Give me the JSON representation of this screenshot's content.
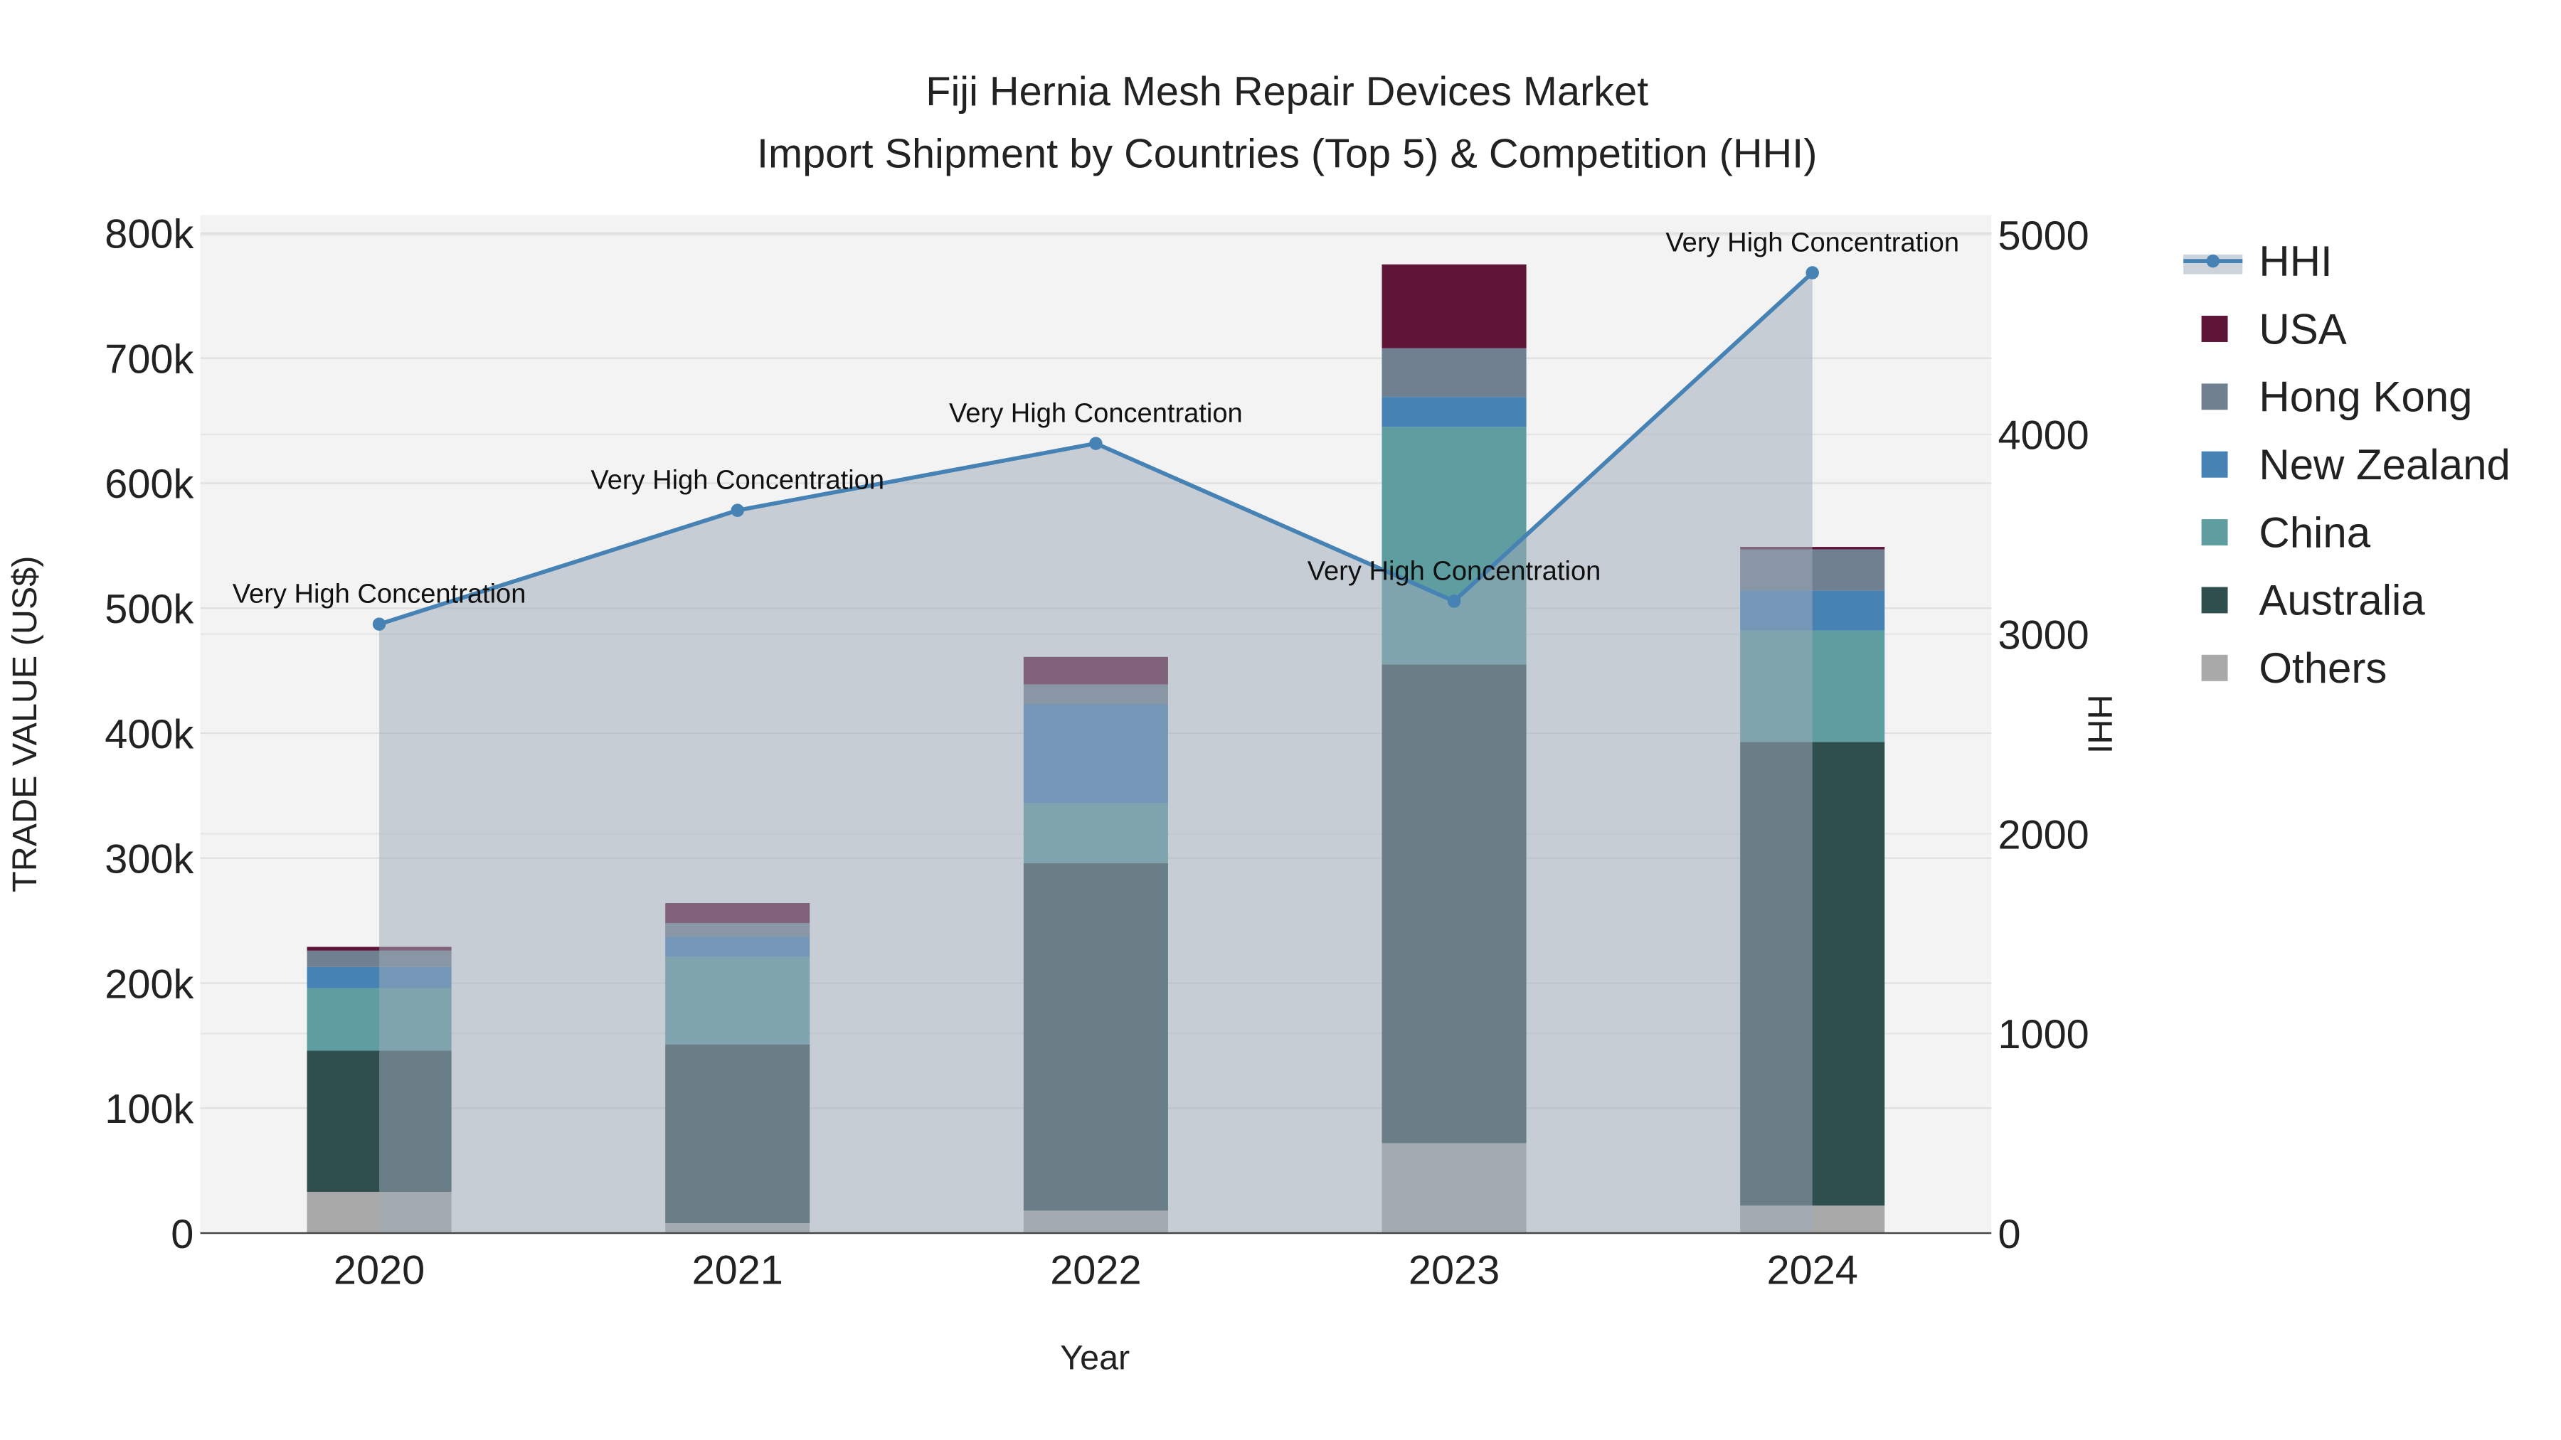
{
  "chart_data": {
    "type": "bar",
    "title": "Fiji Hernia Mesh Repair Devices Market",
    "subtitle": "Import Shipment by Countries (Top 5) & Competition (HHI)",
    "xlabel": "Year",
    "ylabel": "TRADE VALUE (US$)",
    "y2label": "HHI",
    "ylim": [
      0,
      800000
    ],
    "y2lim": [
      0,
      5000
    ],
    "yticks": [
      "0",
      "100k",
      "200k",
      "300k",
      "400k",
      "500k",
      "600k",
      "700k",
      "800k"
    ],
    "y2ticks": [
      "0",
      "1000",
      "2000",
      "3000",
      "4000",
      "5000"
    ],
    "categories": [
      "2020",
      "2021",
      "2022",
      "2023",
      "2024"
    ],
    "stacked": true,
    "series": [
      {
        "name": "Others",
        "color": "#a9a9a9",
        "values": [
          33000,
          8000,
          18000,
          72000,
          22000
        ]
      },
      {
        "name": "Australia",
        "color": "#2f4f4f",
        "values": [
          113000,
          143000,
          278000,
          383000,
          371000
        ]
      },
      {
        "name": "China",
        "color": "#5f9ea0",
        "values": [
          50000,
          70000,
          48000,
          190000,
          89000
        ]
      },
      {
        "name": "New Zealand",
        "color": "#4682b4",
        "values": [
          17000,
          16000,
          79000,
          24000,
          32000
        ]
      },
      {
        "name": "Hong Kong",
        "color": "#708090",
        "values": [
          13000,
          11000,
          16000,
          39000,
          33000
        ]
      },
      {
        "name": "USA",
        "color": "#5e1537",
        "values": [
          3000,
          16000,
          22000,
          67000,
          2000
        ]
      }
    ],
    "line": {
      "name": "HHI",
      "color": "#4682b4",
      "axis": "y2",
      "values": [
        3050,
        3620,
        3955,
        3165,
        4810
      ],
      "annotations": [
        "Very High Concentration",
        "Very High Concentration",
        "Very High Concentration",
        "Very High Concentration",
        "Very High Concentration"
      ]
    },
    "legend": {
      "placement": "right",
      "order": [
        "HHI",
        "USA",
        "Hong Kong",
        "New Zealand",
        "China",
        "Australia",
        "Others"
      ]
    }
  }
}
